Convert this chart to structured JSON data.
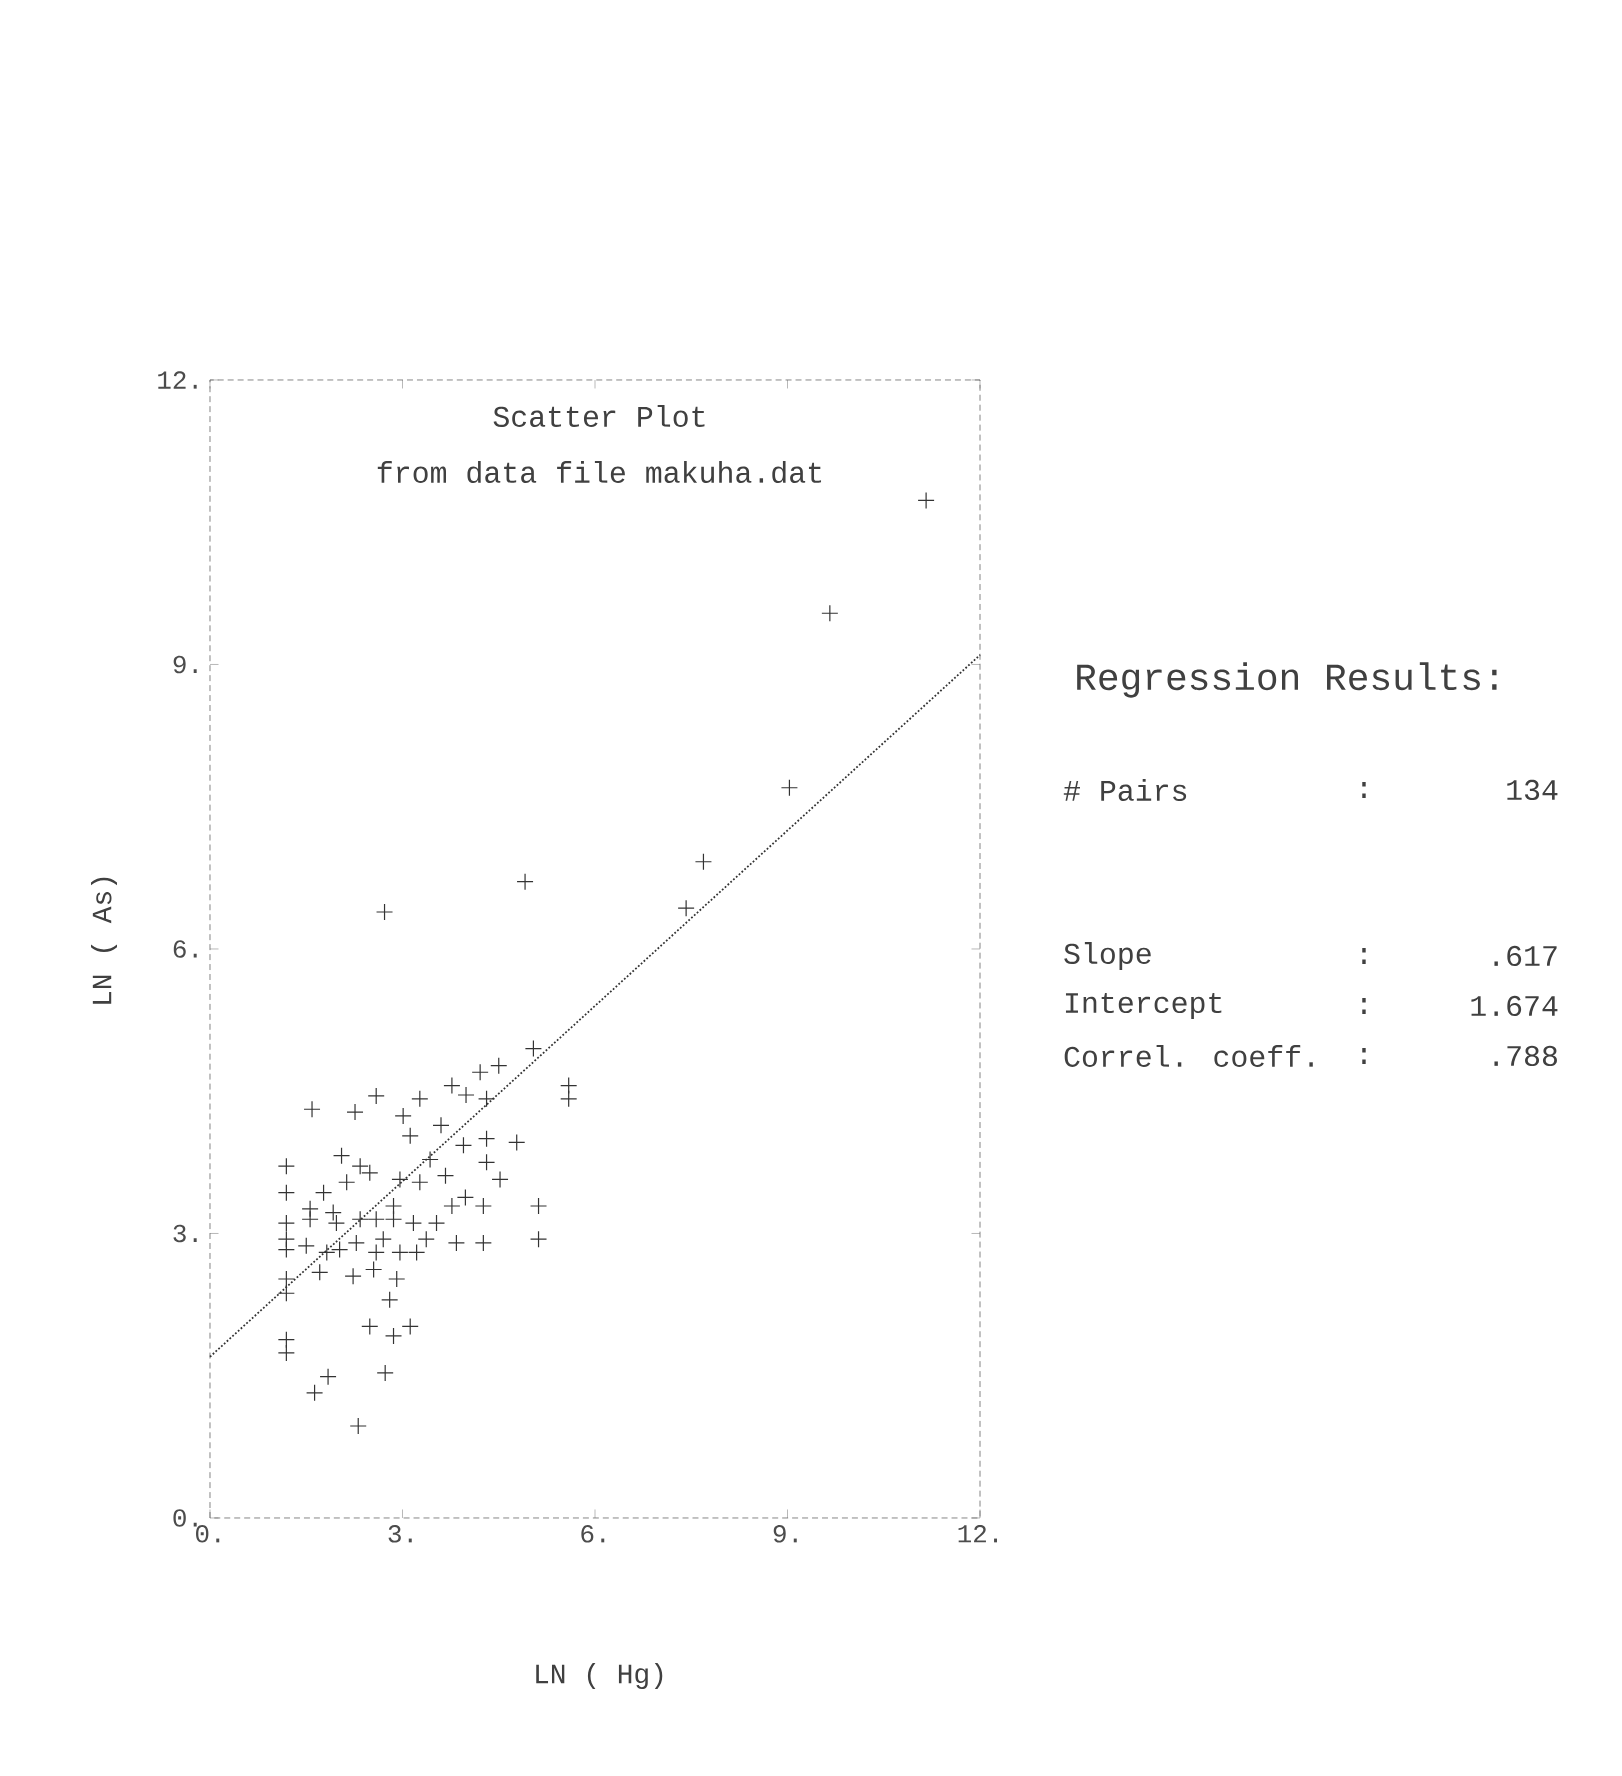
{
  "chart_data": {
    "type": "scatter",
    "title": "Scatter Plot",
    "subtitle": "from data file makuha.dat",
    "xlabel": "LN (  Hg)",
    "ylabel": "LN (  As)",
    "xlim": [
      0,
      12
    ],
    "ylim": [
      0,
      12
    ],
    "xticks": [
      {
        "value": 0,
        "label": "0."
      },
      {
        "value": 3,
        "label": "3."
      },
      {
        "value": 6,
        "label": "6."
      },
      {
        "value": 9,
        "label": "9."
      },
      {
        "value": 12,
        "label": "12."
      }
    ],
    "yticks": [
      {
        "value": 0,
        "label": "0."
      },
      {
        "value": 3,
        "label": "3."
      },
      {
        "value": 6,
        "label": "6."
      },
      {
        "value": 9,
        "label": "9."
      },
      {
        "value": 12,
        "label": "12."
      }
    ],
    "series": [
      {
        "marker": "cross",
        "color": "#333333",
        "x": [
          2.72,
          4.91,
          5.04,
          5.59,
          5.59,
          4.5,
          4.21,
          3.77,
          2.59,
          3.27,
          1.59,
          2.26,
          3.01,
          4.31,
          3.12,
          3.6,
          4.78,
          2.05,
          2.34,
          1.19,
          2.96,
          3.27,
          3.67,
          3.95,
          4.31,
          4.52,
          4.31,
          1.19,
          1.56,
          1.77,
          2.13,
          2.49,
          2.86,
          3.17,
          3.53,
          3.77,
          3.98,
          4.26,
          4.26,
          3.84,
          5.12,
          5.12,
          1.19,
          1.19,
          1.19,
          1.56,
          1.97,
          2.34,
          2.59,
          2.86,
          1.5,
          1.82,
          2.02,
          2.28,
          2.59,
          2.96,
          3.22,
          3.37,
          1.71,
          2.23,
          2.55,
          2.91,
          1.19,
          1.19,
          2.8,
          2.49,
          2.86,
          3.12,
          1.19,
          1.19,
          1.84,
          1.63,
          2.73,
          2.31,
          1.92,
          2.7,
          9.03,
          7.69,
          7.42,
          11.16,
          9.66,
          3.99,
          3.43
        ],
        "values": [
          6.39,
          6.71,
          4.95,
          4.56,
          4.42,
          4.77,
          4.7,
          4.56,
          4.45,
          4.42,
          4.31,
          4.28,
          4.24,
          4.42,
          4.03,
          4.14,
          3.96,
          3.82,
          3.71,
          3.71,
          3.57,
          3.54,
          3.61,
          3.93,
          4.0,
          3.57,
          3.75,
          3.43,
          3.26,
          3.43,
          3.54,
          3.64,
          3.29,
          3.11,
          3.11,
          3.29,
          3.38,
          3.29,
          2.9,
          2.9,
          3.29,
          2.94,
          3.11,
          2.94,
          2.83,
          3.15,
          3.11,
          3.15,
          3.15,
          3.15,
          2.87,
          2.8,
          2.83,
          2.9,
          2.8,
          2.8,
          2.8,
          2.94,
          2.59,
          2.55,
          2.62,
          2.52,
          2.52,
          2.37,
          2.3,
          2.02,
          1.92,
          2.02,
          1.88,
          1.74,
          1.49,
          1.32,
          1.53,
          0.97,
          3.22,
          2.94,
          7.7,
          6.92,
          6.43,
          10.73,
          9.54,
          4.46,
          3.78
        ]
      },
      {
        "type": "line",
        "marker": "none",
        "line_style": "dotted",
        "color": "#333333",
        "x": [
          0,
          12
        ],
        "values": [
          1.7,
          9.1
        ]
      }
    ],
    "annotations": [
      "Regression Results:",
      "# Pairs",
      ":",
      "134",
      "Slope",
      ":",
      ".617",
      "Intercept",
      ":",
      "1.674",
      "Correl. coeff.",
      ":",
      ".788"
    ]
  }
}
